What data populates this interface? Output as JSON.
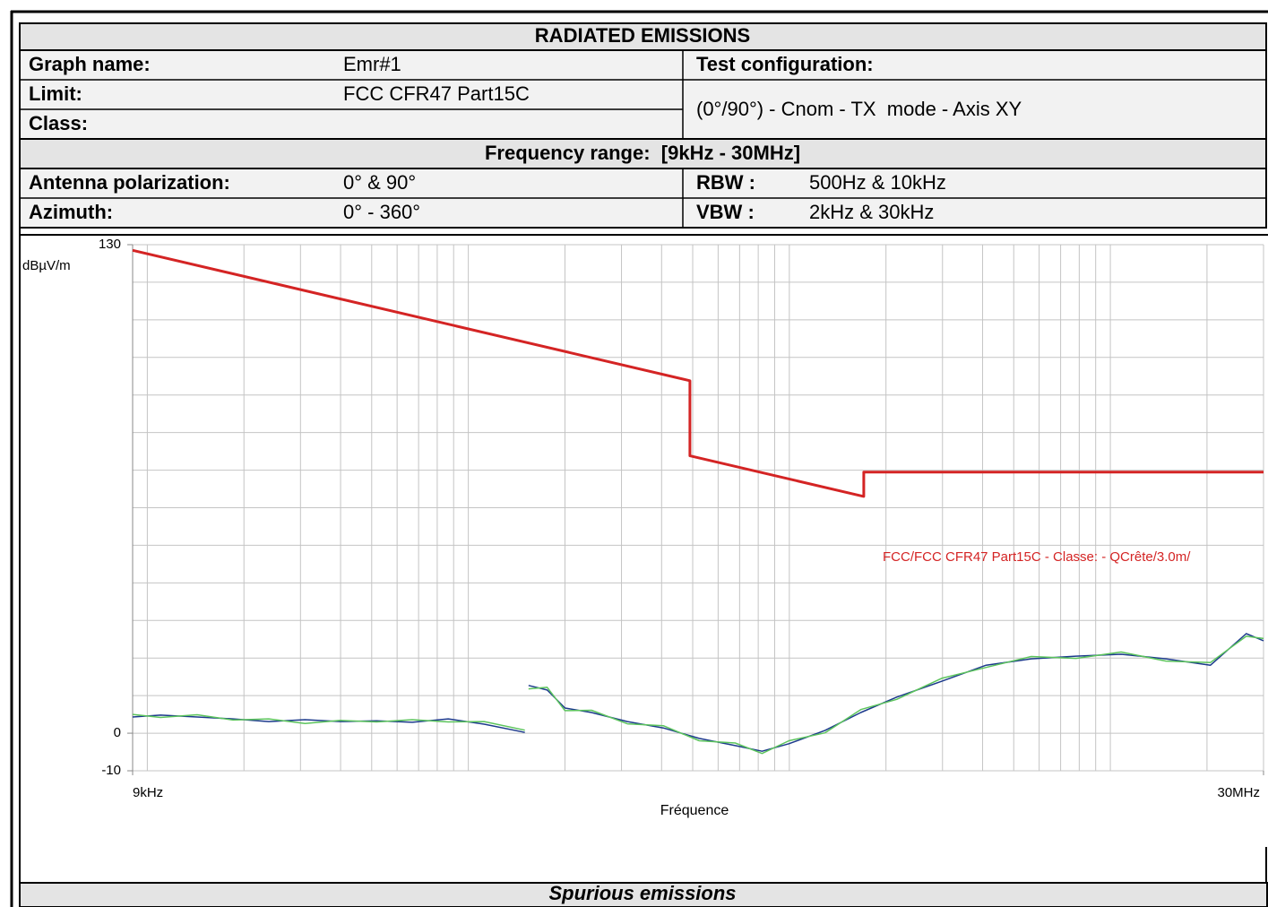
{
  "header": {
    "title": "RADIATED EMISSIONS",
    "graph_name": {
      "label": "Graph name:",
      "value": "Emr#1"
    },
    "limit": {
      "label": "Limit:",
      "value": "FCC CFR47 Part15C"
    },
    "class": {
      "label": "Class:"
    },
    "test_configuration": {
      "label": "Test configuration:",
      "value": "(0°/90°) - Cnom - TX  mode - Axis XY"
    },
    "frequency_range": "Frequency range:  [9kHz - 30MHz]",
    "antenna_polarization": {
      "label": "Antenna polarization:",
      "value": "0° & 90°"
    },
    "azimuth": {
      "label": "Azimuth:",
      "value": "0° - 360°"
    },
    "rbw": {
      "label": "RBW :",
      "value": "500Hz & 10kHz"
    },
    "vbw": {
      "label": "VBW :",
      "value": "2kHz & 30kHz"
    }
  },
  "chart_data": {
    "type": "line",
    "y_label": "dBµV/m",
    "x_label": "Fréquence",
    "xscale": "log",
    "xlim": [
      9000,
      30000000
    ],
    "xticks": [
      {
        "value": 9000,
        "label": "9kHz"
      },
      {
        "value": 30000000,
        "label": "30MHz"
      }
    ],
    "xgrid": [
      10000,
      20000,
      30000,
      40000,
      50000,
      60000,
      70000,
      80000,
      90000,
      100000,
      200000,
      300000,
      400000,
      500000,
      600000,
      700000,
      800000,
      900000,
      1000000,
      2000000,
      3000000,
      4000000,
      5000000,
      6000000,
      7000000,
      8000000,
      9000000,
      10000000,
      20000000,
      30000000
    ],
    "ylim": [
      -10,
      130
    ],
    "yticks": [
      -10,
      0,
      130
    ],
    "ygrid": [
      -10,
      0,
      10,
      20,
      30,
      40,
      50,
      60,
      70,
      80,
      90,
      100,
      110,
      120,
      130
    ],
    "annotation": "FCC/FCC CFR47 Part15C - Classe: - QCrête/3.0m/",
    "series": [
      {
        "color": "#d42424",
        "x": [
          9000,
          490000,
          490000,
          1705000,
          1705000,
          30000000
        ],
        "values": [
          128.5,
          93.8,
          73.8,
          63.0,
          69.5,
          69.5
        ]
      },
      {
        "color": "#5cc45c",
        "x": [
          9000,
          11000,
          14300,
          18500,
          23900,
          31000,
          40000,
          51800,
          66900,
          86600,
          112000,
          150000,
          null,
          154000,
          176000,
          200000,
          242000,
          313000,
          405000,
          524000,
          678000,
          822000,
          997000,
          1290000,
          1670000,
          2160000,
          2980000,
          4100000,
          5670000,
          7820000,
          10800000,
          14900000,
          20500000,
          26500000,
          30000000
        ],
        "values": [
          5.0,
          4.2,
          4.9,
          3.5,
          3.8,
          2.6,
          3.4,
          3.0,
          3.6,
          3.0,
          3.1,
          0.8,
          null,
          11.8,
          12.2,
          6.0,
          6.1,
          2.5,
          2.0,
          -2.0,
          -2.6,
          -5.4,
          -2.0,
          0.1,
          6.3,
          9.0,
          14.6,
          17.5,
          20.4,
          19.9,
          21.6,
          19.2,
          18.8,
          25.8,
          25.2
        ]
      },
      {
        "color": "#1c3a8c",
        "x": [
          9000,
          11000,
          14300,
          18500,
          23900,
          31000,
          40000,
          51800,
          66900,
          86600,
          112000,
          150000,
          null,
          154000,
          176000,
          200000,
          242000,
          313000,
          405000,
          524000,
          678000,
          822000,
          997000,
          1290000,
          1670000,
          2160000,
          2980000,
          4100000,
          5670000,
          7820000,
          10800000,
          14900000,
          20500000,
          26500000,
          30000000
        ],
        "values": [
          4.3,
          4.8,
          4.3,
          3.8,
          3.1,
          3.6,
          3.1,
          3.3,
          2.9,
          3.8,
          2.4,
          0.2,
          null,
          12.7,
          11.5,
          6.7,
          5.5,
          3.1,
          1.4,
          -1.4,
          -3.3,
          -4.8,
          -2.8,
          0.7,
          5.5,
          9.6,
          13.8,
          18.1,
          19.8,
          20.5,
          21.0,
          19.8,
          18.1,
          26.5,
          24.6
        ]
      }
    ]
  },
  "footer": "Spurious emissions"
}
